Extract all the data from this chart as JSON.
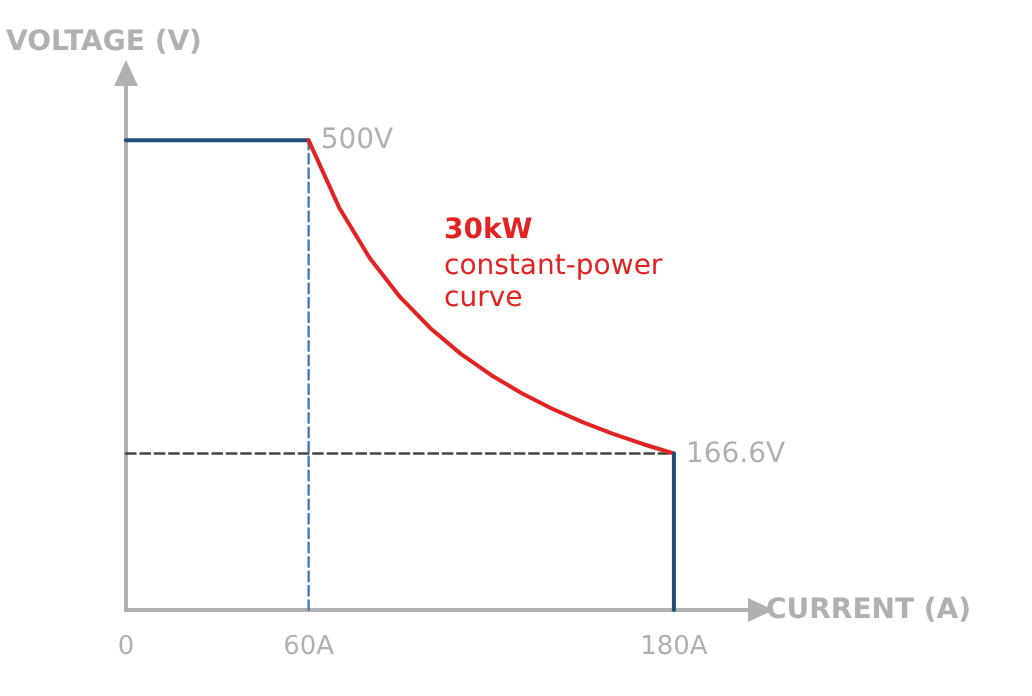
{
  "chart_data": {
    "type": "line",
    "xlabel": "CURRENT (A)",
    "ylabel": "VOLTAGE (V)",
    "xlim": [
      0,
      205
    ],
    "ylim": [
      0,
      560
    ],
    "xticks": [
      0,
      {
        "value": 60,
        "label": "60A"
      },
      {
        "value": 180,
        "label": "180A"
      }
    ],
    "tick_labels": "x",
    "grid": false,
    "marker": "none",
    "series": [
      {
        "color": "#1f4e79",
        "x": [
          0,
          60
        ],
        "values": [
          500,
          500
        ],
        "value_labels": [
          null,
          "500V"
        ]
      },
      {
        "color": "#e32222",
        "x": [
          60,
          70,
          80,
          90,
          100,
          110,
          120,
          130,
          140,
          150,
          160,
          170,
          180
        ],
        "values": [
          500,
          428.6,
          375,
          333.3,
          300,
          272.7,
          250,
          230.8,
          214.3,
          200,
          187.5,
          176.5,
          166.6
        ]
      },
      {
        "color": "#1f4e79",
        "x": [
          180,
          180
        ],
        "values": [
          166.6,
          0
        ],
        "value_labels": [
          "166.6V",
          null
        ]
      },
      {
        "color": "#4a7bb0",
        "x": [
          60,
          60
        ],
        "values": [
          0,
          500
        ],
        "line_style": "dashed"
      },
      {
        "color": "#444444",
        "x": [
          0,
          180
        ],
        "values": [
          166.6,
          166.6
        ],
        "line_style": "dashed"
      }
    ],
    "annotations": [
      "30kW",
      "constant-power\ncurve"
    ]
  }
}
